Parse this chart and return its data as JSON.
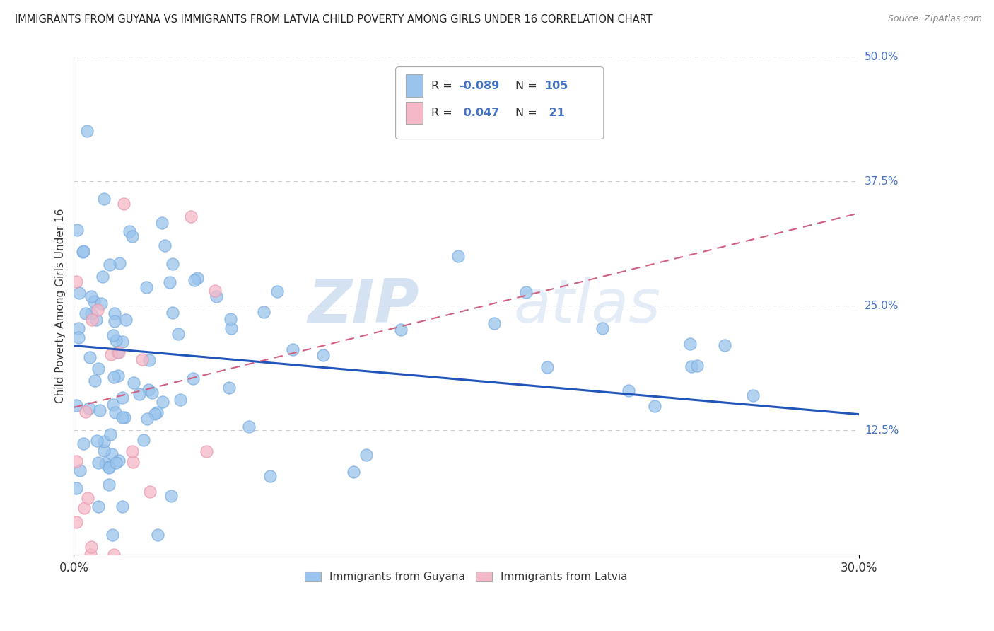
{
  "title": "IMMIGRANTS FROM GUYANA VS IMMIGRANTS FROM LATVIA CHILD POVERTY AMONG GIRLS UNDER 16 CORRELATION CHART",
  "source": "Source: ZipAtlas.com",
  "ylabel": "Child Poverty Among Girls Under 16",
  "xlim": [
    0.0,
    0.3
  ],
  "ylim": [
    0.0,
    0.5
  ],
  "guyana_color": "#9ac4ec",
  "guyana_edge": "#7aace0",
  "latvia_color": "#f5b8c8",
  "latvia_edge": "#e898b0",
  "guyana_line_color": "#2255bb",
  "latvia_line_color": "#d06080",
  "guyana_R": -0.089,
  "guyana_N": 105,
  "latvia_R": 0.047,
  "latvia_N": 21,
  "watermark_zip": "ZIP",
  "watermark_atlas": "atlas",
  "background_color": "#ffffff",
  "grid_color": "#cccccc",
  "right_label_color": "#4472c4",
  "title_color": "#222222",
  "source_color": "#888888",
  "guyana_intercept": 0.21,
  "guyana_slope": -0.23,
  "latvia_intercept": 0.148,
  "latvia_slope": 0.65
}
